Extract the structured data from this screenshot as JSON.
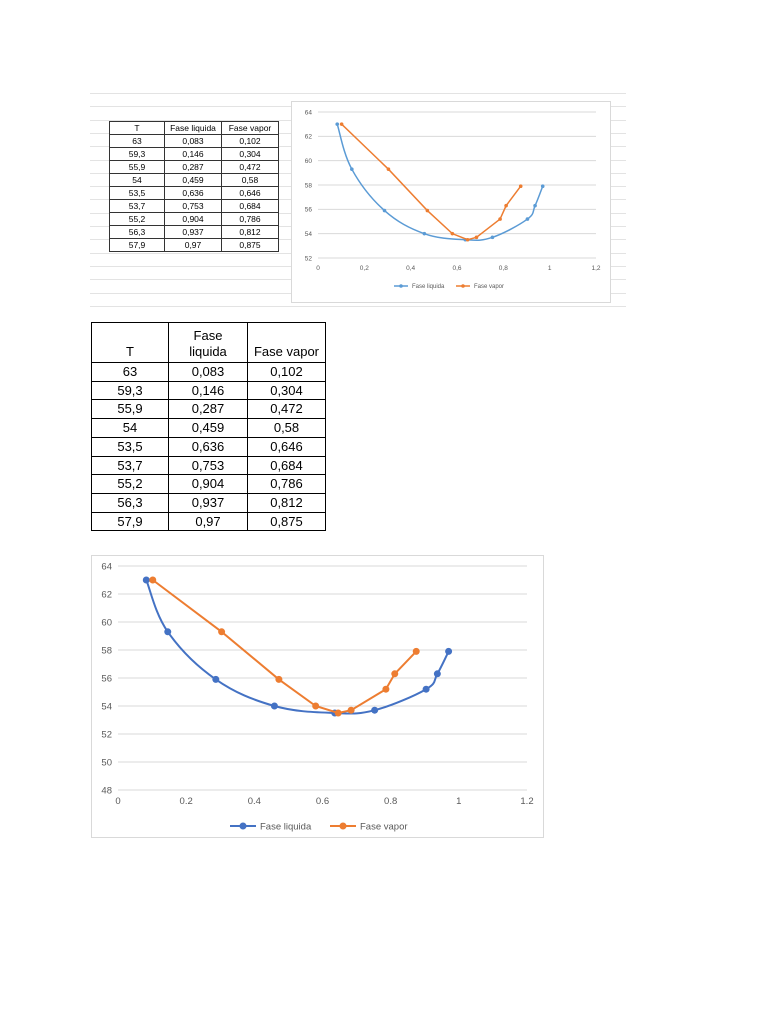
{
  "table": {
    "headers": [
      "T",
      "Fase\nliquida",
      "Fase vapor"
    ],
    "headers_small": [
      "T",
      "Fase liquida",
      "Fase vapor"
    ],
    "rows": [
      [
        "63",
        "0,083",
        "0,102"
      ],
      [
        "59,3",
        "0,146",
        "0,304"
      ],
      [
        "55,9",
        "0,287",
        "0,472"
      ],
      [
        "54",
        "0,459",
        "0,58"
      ],
      [
        "53,5",
        "0,636",
        "0,646"
      ],
      [
        "53,7",
        "0,753",
        "0,684"
      ],
      [
        "55,2",
        "0,904",
        "0,786"
      ],
      [
        "56,3",
        "0,937",
        "0,812"
      ],
      [
        "57,9",
        "0,97",
        "0,875"
      ]
    ]
  },
  "chart_data": [
    {
      "type": "scatter",
      "title": "",
      "xlabel": "",
      "ylabel": "",
      "xlim": [
        0,
        1.2
      ],
      "ylim": [
        52,
        64
      ],
      "xticks": [
        "0",
        "0,2",
        "0,4",
        "0,6",
        "0,8",
        "1",
        "1,2"
      ],
      "yticks": [
        "52",
        "54",
        "56",
        "58",
        "60",
        "62",
        "64"
      ],
      "grid": true,
      "legend_position": "bottom",
      "series": [
        {
          "name": "Fase liquida",
          "color": "#5b9bd5",
          "smooth": true,
          "x": [
            0.083,
            0.146,
            0.287,
            0.459,
            0.636,
            0.753,
            0.904,
            0.937,
            0.97
          ],
          "y": [
            63,
            59.3,
            55.9,
            54,
            53.5,
            53.7,
            55.2,
            56.3,
            57.9
          ]
        },
        {
          "name": "Fase vapor",
          "color": "#ed7d31",
          "smooth": false,
          "x": [
            0.102,
            0.304,
            0.472,
            0.58,
            0.646,
            0.684,
            0.786,
            0.812,
            0.875
          ],
          "y": [
            63,
            59.3,
            55.9,
            54,
            53.5,
            53.7,
            55.2,
            56.3,
            57.9
          ]
        }
      ]
    },
    {
      "type": "scatter",
      "title": "",
      "xlabel": "",
      "ylabel": "",
      "xlim": [
        0,
        1.2
      ],
      "ylim": [
        48,
        64
      ],
      "xticks": [
        "0",
        "0.2",
        "0.4",
        "0.6",
        "0.8",
        "1",
        "1.2"
      ],
      "yticks": [
        "48",
        "50",
        "52",
        "54",
        "56",
        "58",
        "60",
        "62",
        "64"
      ],
      "grid": true,
      "legend_position": "bottom",
      "series": [
        {
          "name": "Fase liquida",
          "color": "#4472c4",
          "smooth": true,
          "x": [
            0.083,
            0.146,
            0.287,
            0.459,
            0.636,
            0.753,
            0.904,
            0.937,
            0.97
          ],
          "y": [
            63,
            59.3,
            55.9,
            54,
            53.5,
            53.7,
            55.2,
            56.3,
            57.9
          ]
        },
        {
          "name": "Fase vapor",
          "color": "#ed7d31",
          "smooth": false,
          "x": [
            0.102,
            0.304,
            0.472,
            0.58,
            0.646,
            0.684,
            0.786,
            0.812,
            0.875
          ],
          "y": [
            63,
            59.3,
            55.9,
            54,
            53.5,
            53.7,
            55.2,
            56.3,
            57.9
          ]
        }
      ]
    }
  ]
}
